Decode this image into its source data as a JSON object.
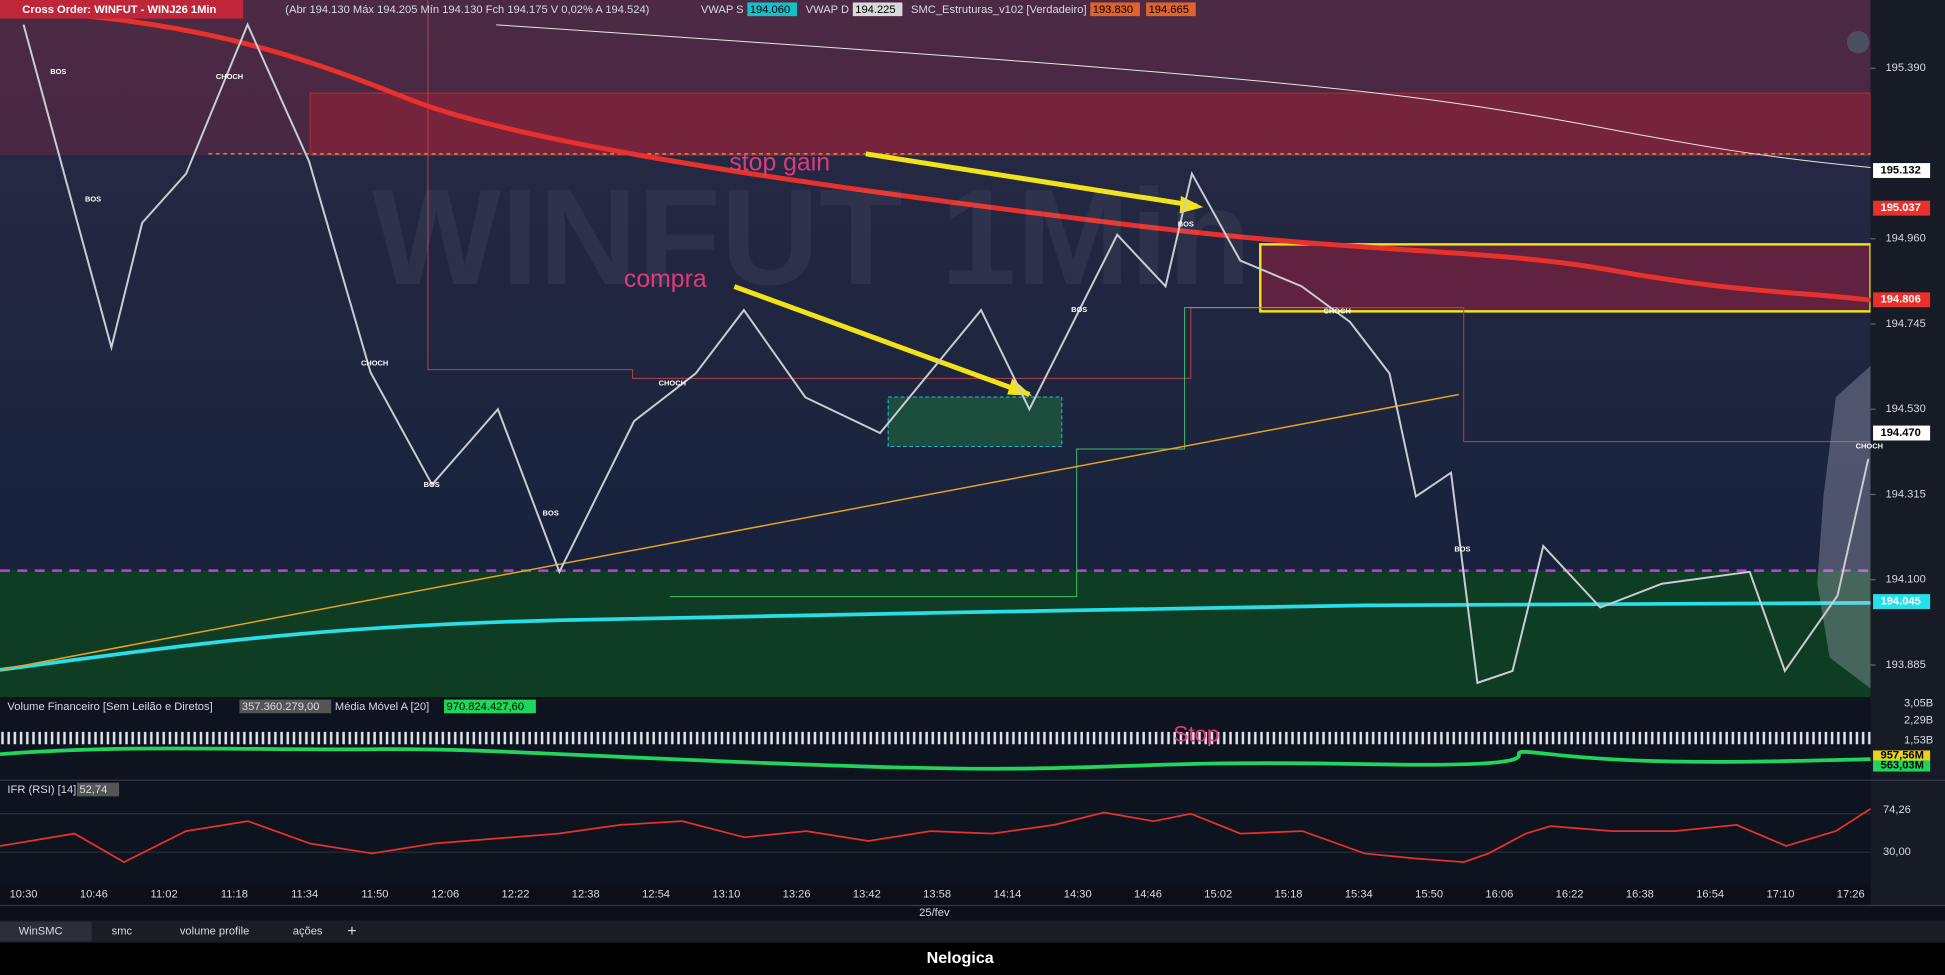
{
  "header": {
    "symbol": "Cross Order: WINFUT - WINJ26 1Min",
    "ohlc": "(Abr 194.130 Máx 194.205 Mín 194.130 Fch 194.175 V 0,02% A 194.524)",
    "indicators": [
      {
        "label": "VWAP S",
        "value": "194.060",
        "color": "#17c0c9"
      },
      {
        "label": "VWAP D",
        "value": "194.225",
        "color": "#d9d9d9"
      },
      {
        "label": "SMC_Estruturas_v102 [Verdadeiro]",
        "value": "193.830",
        "color": "#e0622c"
      }
    ],
    "extra_value": {
      "value": "194.665",
      "color": "#e0622c"
    }
  },
  "price_chart": {
    "price_range": [
      193.804,
      195.562
    ],
    "price_ticks": [
      {
        "value": 195.39,
        "label": "195.390"
      },
      {
        "value": 194.96,
        "label": "194.960"
      },
      {
        "value": 194.745,
        "label": "194.745"
      },
      {
        "value": 194.53,
        "label": "194.530"
      },
      {
        "value": 194.315,
        "label": "194.315"
      },
      {
        "value": 194.1,
        "label": "194.100"
      },
      {
        "value": 193.885,
        "label": "193.885"
      }
    ],
    "levels": [
      {
        "value": 195.132,
        "label": "195.132",
        "color": "#ffffff"
      },
      {
        "value": 195.037,
        "label": "195.037",
        "color": "#e8312c"
      },
      {
        "value": 194.806,
        "label": "194.806",
        "color": "#e8312c"
      },
      {
        "value": 194.47,
        "label": "194.470",
        "color": "#ffffff"
      },
      {
        "value": 194.045,
        "label": "194.045",
        "color": "#25e0ea"
      }
    ],
    "time_ticks": [
      "10:30",
      "10:46",
      "11:02",
      "11:18",
      "11:34",
      "11:50",
      "12:06",
      "12:22",
      "12:38",
      "12:54",
      "13:10",
      "13:26",
      "13:42",
      "13:58",
      "14:14",
      "14:30",
      "14:46",
      "15:02",
      "15:18",
      "15:34",
      "15:50",
      "16:06",
      "16:22",
      "16:38",
      "16:54",
      "17:10",
      "17:26"
    ],
    "date": "25/fev",
    "price_series": {
      "times": [
        "10:30",
        "10:50",
        "10:57",
        "11:07",
        "11:21",
        "11:35",
        "11:49",
        "12:03",
        "12:18",
        "12:32",
        "12:49",
        "13:03",
        "13:14",
        "13:28",
        "13:45",
        "14:08",
        "14:19",
        "14:39",
        "14:50",
        "14:56",
        "15:07",
        "15:21",
        "15:32",
        "15:41",
        "15:47",
        "15:55",
        "16:01",
        "16:09",
        "16:16",
        "16:29",
        "16:43",
        "17:03",
        "17:11",
        "17:23",
        "17:30"
      ],
      "prices": [
        195.5,
        194.686,
        195.0,
        195.124,
        195.5,
        195.155,
        194.623,
        194.34,
        194.53,
        194.12,
        194.5,
        194.62,
        194.78,
        194.56,
        194.47,
        194.78,
        194.53,
        194.97,
        194.84,
        195.124,
        194.905,
        194.84,
        194.75,
        194.62,
        194.31,
        194.37,
        193.84,
        193.87,
        194.185,
        194.03,
        194.09,
        194.12,
        193.87,
        194.06,
        194.405
      ]
    },
    "structure_labels": [
      "BOS",
      "BOS",
      "CHOCH",
      "CHOCH",
      "BOS",
      "BOS",
      "CHOCH",
      "BOS",
      "BOS",
      "CHOCH",
      "BOS",
      "CHOCH"
    ],
    "watermark": "WINFUT 1Min",
    "annotations": [
      "stop gain",
      "compra"
    ]
  },
  "volume_panel": {
    "title": "Volume Financeiro [Sem Leilão e Diretos]",
    "value": "357.360.279,00",
    "ma_title": "Média Móvel A [20]",
    "ma_value": "970.824.427,60",
    "axis": [
      "3,05B",
      "2,29B",
      "1,53B"
    ],
    "badges": [
      {
        "label": "957,56M",
        "color": "#e8d21c"
      },
      {
        "label": "563,03M",
        "color": "#1fd65a"
      }
    ],
    "annotation": "Stop"
  },
  "rsi_panel": {
    "title": "IFR (RSI) [14]",
    "value": "52,74",
    "axis": [
      "74,26",
      "30,00"
    ]
  },
  "tabs": [
    "WinSMC",
    "smc",
    "volume profile",
    "ações"
  ],
  "footer": "Nelogica"
}
